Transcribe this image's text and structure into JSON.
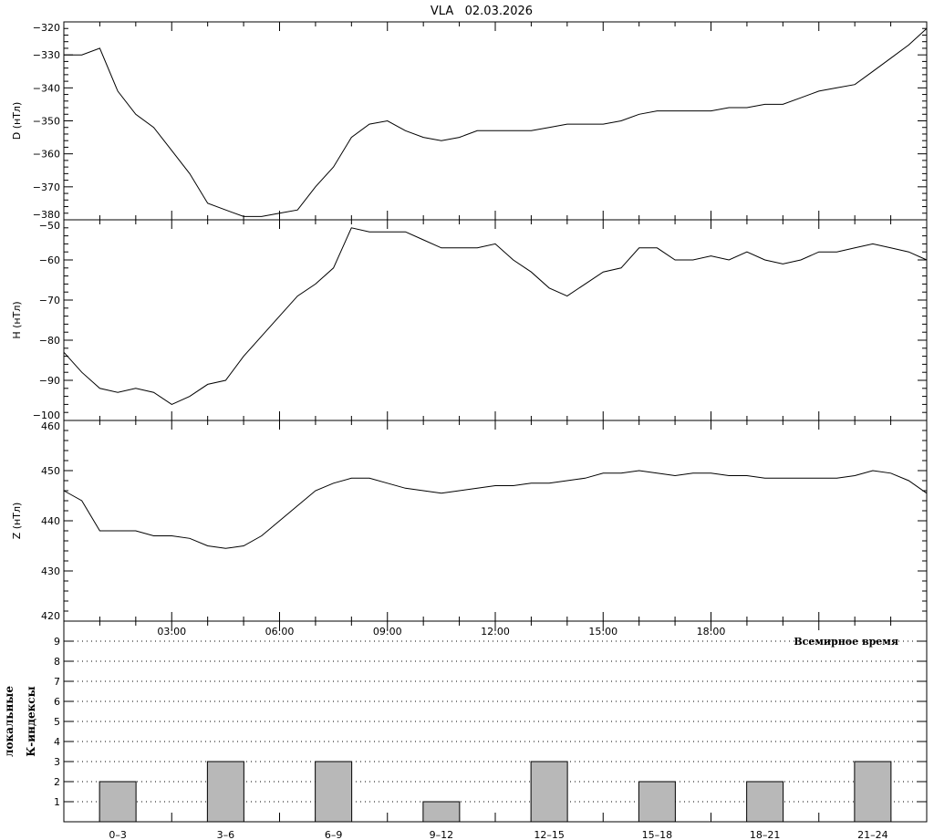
{
  "chart_data": [
    {
      "type": "line",
      "title": "VLA   02.03.2026",
      "ylabel": "D (нТл)",
      "ylim": [
        -380,
        -320
      ],
      "yticks": [
        -320,
        -330,
        -340,
        -350,
        -360,
        -370,
        -380
      ],
      "xlim": [
        0,
        24
      ],
      "x_step_hours": 0.5,
      "values": [
        -330,
        -330,
        -328,
        -341,
        -348,
        -352,
        -359,
        -366,
        -375,
        -377,
        -379,
        -379,
        -378,
        -377,
        -370,
        -364,
        -355,
        -351,
        -350,
        -353,
        -355,
        -356,
        -355,
        -353,
        -353,
        -353,
        -353,
        -352,
        -351,
        -351,
        -351,
        -350,
        -348,
        -347,
        -347,
        -347,
        -347,
        -346,
        -346,
        -345,
        -345,
        -343,
        -341,
        -340,
        -339,
        -335,
        -331,
        -327,
        -322
      ],
      "color": "#000000"
    },
    {
      "type": "line",
      "ylabel": "H (нТл)",
      "ylim": [
        -100,
        -50
      ],
      "yticks": [
        -50,
        -60,
        -70,
        -80,
        -90,
        -100
      ],
      "xlim": [
        0,
        24
      ],
      "x_step_hours": 0.5,
      "values": [
        -83,
        -88,
        -92,
        -93,
        -92,
        -93,
        -96,
        -94,
        -91,
        -90,
        -84,
        -79,
        -74,
        -69,
        -66,
        -62,
        -52,
        -53,
        -53,
        -53,
        -55,
        -57,
        -57,
        -57,
        -56,
        -60,
        -63,
        -67,
        -69,
        -66,
        -63,
        -62,
        -57,
        -57,
        -60,
        -60,
        -59,
        -60,
        -58,
        -60,
        -61,
        -60,
        -58,
        -58,
        -57,
        -56,
        -57,
        -58,
        -60
      ],
      "color": "#000000"
    },
    {
      "type": "line",
      "ylabel": "Z (нТл)",
      "ylim": [
        420,
        460
      ],
      "yticks": [
        460,
        450,
        440,
        430,
        420
      ],
      "xlim": [
        0,
        24
      ],
      "x_step_hours": 0.5,
      "xticks": [
        "03:00",
        "06:00",
        "09:00",
        "12:00",
        "15:00",
        "18:00"
      ],
      "xtick_hours": [
        3,
        6,
        9,
        12,
        15,
        18
      ],
      "xlabel": "Всемирное время",
      "values": [
        446,
        444,
        438,
        438,
        438,
        437,
        437,
        436.5,
        435,
        434.5,
        435,
        437,
        440,
        443,
        446,
        447.5,
        448.5,
        448.5,
        447.5,
        446.5,
        446,
        445.5,
        446,
        446.5,
        447,
        447,
        447.5,
        447.5,
        448,
        448.5,
        449.5,
        449.5,
        450,
        449.5,
        449,
        449.5,
        449.5,
        449,
        449,
        448.5,
        448.5,
        448.5,
        448.5,
        448.5,
        449,
        450,
        449.5,
        448,
        445.5
      ],
      "color": "#000000"
    },
    {
      "type": "bar",
      "ylabel_lines": [
        "локальные",
        "К-индексы"
      ],
      "ylim": [
        0,
        10
      ],
      "yticks": [
        1,
        2,
        3,
        4,
        5,
        6,
        7,
        8,
        9
      ],
      "grid": "dotted horizontal",
      "categories": [
        "0–3",
        "3–6",
        "6–9",
        "9–12",
        "12–15",
        "15–18",
        "18–21",
        "21–24"
      ],
      "values": [
        2,
        3,
        3,
        1,
        3,
        2,
        2,
        3
      ],
      "bar_color": "#b8b8b8"
    }
  ]
}
